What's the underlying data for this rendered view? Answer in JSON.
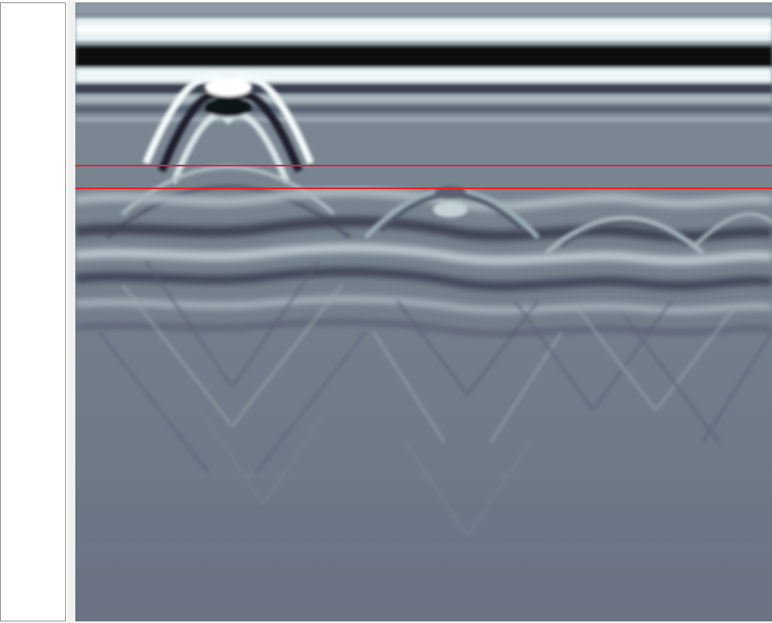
{
  "viewer": {
    "image_kind": "ground penetrating radar radargram (B-scan), grayscale",
    "depth_markers": {
      "count": 2,
      "color": "#e0232a"
    },
    "colors": {
      "background": "#6f7889",
      "light_band": "#e6f0f2",
      "dark_band": "#0a0a10"
    },
    "left_panel": {
      "content": ""
    }
  }
}
